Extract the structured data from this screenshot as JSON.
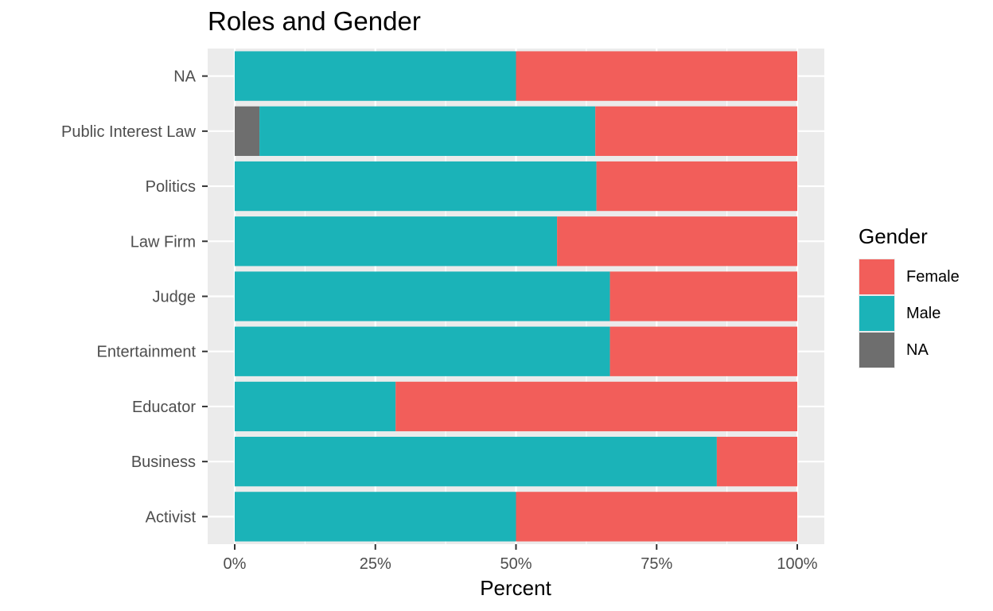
{
  "chart_data": {
    "type": "bar",
    "orientation": "horizontal",
    "stacked": "percent",
    "title": "Roles and Gender",
    "xlabel": "Percent",
    "ylabel": "",
    "xlim": [
      0,
      1
    ],
    "x_ticks": [
      "0%",
      "25%",
      "50%",
      "75%",
      "100%"
    ],
    "categories": [
      "NA",
      "Public Interest Law",
      "Politics",
      "Law Firm",
      "Judge",
      "Entertainment",
      "Educator",
      "Business",
      "Activist"
    ],
    "series": [
      {
        "name": "NA",
        "color": "#6e6e6e",
        "values": [
          0,
          0.044,
          0,
          0,
          0,
          0,
          0,
          0,
          0
        ]
      },
      {
        "name": "Male",
        "color": "#1bb3b8",
        "values": [
          0.5,
          0.597,
          0.643,
          0.573,
          0.667,
          0.667,
          0.286,
          0.857,
          0.5
        ]
      },
      {
        "name": "Female",
        "color": "#f25e5a",
        "values": [
          0.5,
          0.359,
          0.357,
          0.427,
          0.333,
          0.333,
          0.714,
          0.143,
          0.5
        ]
      }
    ],
    "legend": {
      "title": "Gender",
      "position": "right",
      "items": [
        "Female",
        "Male",
        "NA"
      ]
    },
    "grid": true
  },
  "legend_colors": [
    "#f25e5a",
    "#1bb3b8",
    "#6e6e6e"
  ]
}
